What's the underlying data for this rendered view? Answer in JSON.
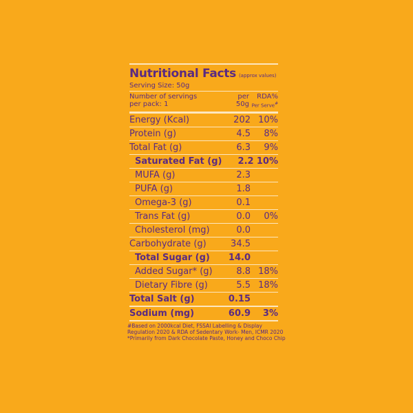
{
  "title": "Nutritional Facts",
  "title_note": "(approx values)",
  "serving_size": "Serving Size: 50g",
  "servings_per_pack_line1": "Number of servings",
  "servings_per_pack_line2": "per pack: 1",
  "header": {
    "per_line1": "per",
    "per_line2": "50g",
    "rda_line1": "RDA%",
    "rda_line2": "Per Serve",
    "rda_mark": "#"
  },
  "rows": [
    {
      "label": "Energy (Kcal)",
      "per": "202",
      "rda": "10%"
    },
    {
      "label": "Protein (g)",
      "per": "4.5",
      "rda": "8%"
    },
    {
      "label": "Total Fat (g)",
      "per": "6.3",
      "rda": "9%"
    },
    {
      "label": "Saturated Fat (g)",
      "per": "2.2",
      "rda": "10%"
    },
    {
      "label": "MUFA (g)",
      "per": "2.3",
      "rda": ""
    },
    {
      "label": "PUFA (g)",
      "per": "1.8",
      "rda": ""
    },
    {
      "label": "Omega-3 (g)",
      "per": "0.1",
      "rda": ""
    },
    {
      "label": "Trans Fat (g)",
      "per": "0.0",
      "rda": "0%"
    },
    {
      "label": "Cholesterol (mg)",
      "per": "0.0",
      "rda": ""
    },
    {
      "label": "Carbohydrate (g)",
      "per": "34.5",
      "rda": ""
    },
    {
      "label": "Total Sugar (g)",
      "per": "14.0",
      "rda": ""
    },
    {
      "label": "Added Sugar* (g)",
      "per": "8.8",
      "rda": "18%"
    },
    {
      "label": "Dietary Fibre (g)",
      "per": "5.5",
      "rda": "18%"
    },
    {
      "label": "Total Salt (g)",
      "per": "0.15",
      "rda": ""
    },
    {
      "label": "Sodium (mg)",
      "per": "60.9",
      "rda": "3%"
    }
  ],
  "footnote": "#Based on 2000kcal Diet, FSSAI Labelling & Display Regulation 2020 & RDA of Sedentary Work- Men, ICMR 2020 *Primarily from Dark Chocolate Paste, Honey and Choco Chip",
  "colors": {
    "background": "#f9a91b",
    "text": "#5a2a82",
    "rule": "#fde7c0"
  }
}
